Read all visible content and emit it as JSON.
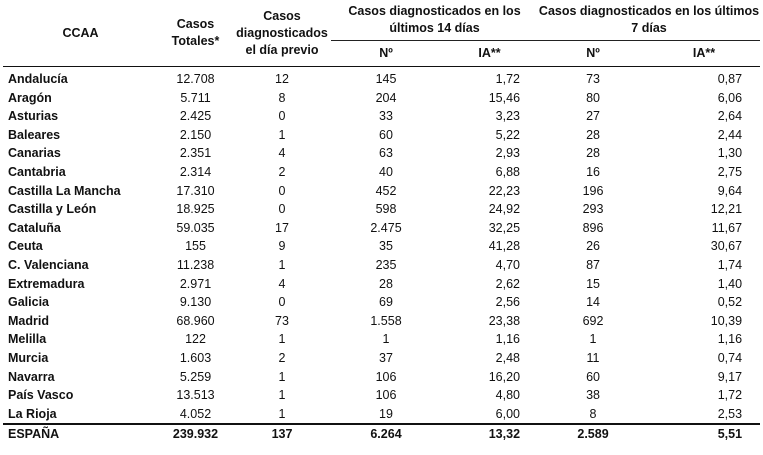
{
  "headers": {
    "ccaa": "CCAA",
    "casos_totales": "Casos Totales*",
    "casos_dia_previo": "Casos diagnosticados el día previo",
    "grupo_14": "Casos diagnosticados en los últimos 14 días",
    "grupo_7": "Casos diagnosticados en los últimos 7 días",
    "n14": "Nº",
    "ia14": "IA**",
    "n7": "Nº",
    "ia7": "IA**"
  },
  "rows": [
    {
      "ccaa": "Andalucía",
      "total": "12.708",
      "previo": "12",
      "n14": "145",
      "ia14": "1,72",
      "n7": "73",
      "ia7": "0,87"
    },
    {
      "ccaa": "Aragón",
      "total": "5.711",
      "previo": "8",
      "n14": "204",
      "ia14": "15,46",
      "n7": "80",
      "ia7": "6,06"
    },
    {
      "ccaa": "Asturias",
      "total": "2.425",
      "previo": "0",
      "n14": "33",
      "ia14": "3,23",
      "n7": "27",
      "ia7": "2,64"
    },
    {
      "ccaa": "Baleares",
      "total": "2.150",
      "previo": "1",
      "n14": "60",
      "ia14": "5,22",
      "n7": "28",
      "ia7": "2,44"
    },
    {
      "ccaa": "Canarias",
      "total": "2.351",
      "previo": "4",
      "n14": "63",
      "ia14": "2,93",
      "n7": "28",
      "ia7": "1,30"
    },
    {
      "ccaa": "Cantabria",
      "total": "2.314",
      "previo": "2",
      "n14": "40",
      "ia14": "6,88",
      "n7": "16",
      "ia7": "2,75"
    },
    {
      "ccaa": "Castilla La Mancha",
      "total": "17.310",
      "previo": "0",
      "n14": "452",
      "ia14": "22,23",
      "n7": "196",
      "ia7": "9,64"
    },
    {
      "ccaa": "Castilla y León",
      "total": "18.925",
      "previo": "0",
      "n14": "598",
      "ia14": "24,92",
      "n7": "293",
      "ia7": "12,21"
    },
    {
      "ccaa": "Cataluña",
      "total": "59.035",
      "previo": "17",
      "n14": "2.475",
      "ia14": "32,25",
      "n7": "896",
      "ia7": "11,67"
    },
    {
      "ccaa": "Ceuta",
      "total": "155",
      "previo": "9",
      "n14": "35",
      "ia14": "41,28",
      "n7": "26",
      "ia7": "30,67"
    },
    {
      "ccaa": "C. Valenciana",
      "total": "11.238",
      "previo": "1",
      "n14": "235",
      "ia14": "4,70",
      "n7": "87",
      "ia7": "1,74"
    },
    {
      "ccaa": "Extremadura",
      "total": "2.971",
      "previo": "4",
      "n14": "28",
      "ia14": "2,62",
      "n7": "15",
      "ia7": "1,40"
    },
    {
      "ccaa": "Galicia",
      "total": "9.130",
      "previo": "0",
      "n14": "69",
      "ia14": "2,56",
      "n7": "14",
      "ia7": "0,52"
    },
    {
      "ccaa": "Madrid",
      "total": "68.960",
      "previo": "73",
      "n14": "1.558",
      "ia14": "23,38",
      "n7": "692",
      "ia7": "10,39"
    },
    {
      "ccaa": "Melilla",
      "total": "122",
      "previo": "1",
      "n14": "1",
      "ia14": "1,16",
      "n7": "1",
      "ia7": "1,16"
    },
    {
      "ccaa": "Murcia",
      "total": "1.603",
      "previo": "2",
      "n14": "37",
      "ia14": "2,48",
      "n7": "11",
      "ia7": "0,74"
    },
    {
      "ccaa": "Navarra",
      "total": "5.259",
      "previo": "1",
      "n14": "106",
      "ia14": "16,20",
      "n7": "60",
      "ia7": "9,17"
    },
    {
      "ccaa": "País Vasco",
      "total": "13.513",
      "previo": "1",
      "n14": "106",
      "ia14": "4,80",
      "n7": "38",
      "ia7": "1,72"
    },
    {
      "ccaa": "La Rioja",
      "total": "4.052",
      "previo": "1",
      "n14": "19",
      "ia14": "6,00",
      "n7": "8",
      "ia7": "2,53"
    }
  ],
  "total": {
    "ccaa": "ESPAÑA",
    "total": "239.932",
    "previo": "137",
    "n14": "6.264",
    "ia14": "13,32",
    "n7": "2.589",
    "ia7": "5,51"
  }
}
